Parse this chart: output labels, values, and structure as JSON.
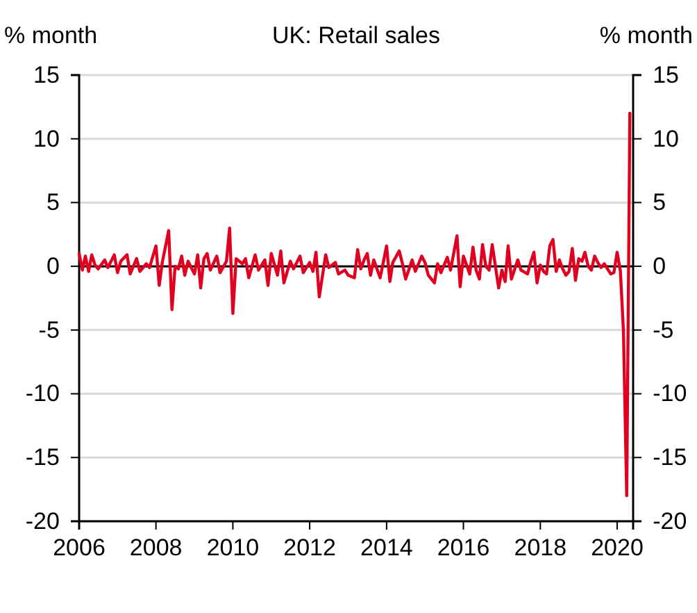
{
  "chart_data": {
    "type": "line",
    "title": "UK: Retail sales",
    "ylabel": "% month",
    "y2label": "% month",
    "x": [
      "2006-01",
      "2006-02",
      "2006-03",
      "2006-04",
      "2006-05",
      "2006-06",
      "2006-07",
      "2006-09",
      "2006-10",
      "2006-12",
      "2007-01",
      "2007-02",
      "2007-04",
      "2007-05",
      "2007-07",
      "2007-08",
      "2007-10",
      "2007-11",
      "2008-01",
      "2008-02",
      "2008-03",
      "2008-05",
      "2008-06",
      "2008-07",
      "2008-08",
      "2008-09",
      "2008-10",
      "2008-11",
      "2009-01",
      "2009-02",
      "2009-03",
      "2009-04",
      "2009-05",
      "2009-06",
      "2009-08",
      "2009-09",
      "2009-11",
      "2009-12",
      "2010-01",
      "2010-02",
      "2010-04",
      "2010-05",
      "2010-06",
      "2010-08",
      "2010-09",
      "2010-11",
      "2010-12",
      "2011-01",
      "2011-03",
      "2011-04",
      "2011-05",
      "2011-07",
      "2011-08",
      "2011-10",
      "2011-11",
      "2012-01",
      "2012-02",
      "2012-03",
      "2012-04",
      "2012-06",
      "2012-07",
      "2012-09",
      "2012-10",
      "2012-12",
      "2013-01",
      "2013-03",
      "2013-04",
      "2013-05",
      "2013-06",
      "2013-07",
      "2013-08",
      "2013-09",
      "2013-11",
      "2014-01",
      "2014-02",
      "2014-03",
      "2014-05",
      "2014-06",
      "2014-07",
      "2014-09",
      "2014-10",
      "2014-12",
      "2015-01",
      "2015-02",
      "2015-04",
      "2015-05",
      "2015-06",
      "2015-08",
      "2015-09",
      "2015-11",
      "2015-12",
      "2016-01",
      "2016-03",
      "2016-04",
      "2016-05",
      "2016-06",
      "2016-07",
      "2016-08",
      "2016-09",
      "2016-10",
      "2016-12",
      "2017-01",
      "2017-02",
      "2017-03",
      "2017-04",
      "2017-06",
      "2017-07",
      "2017-09",
      "2017-10",
      "2017-11",
      "2017-12",
      "2018-01",
      "2018-02",
      "2018-03",
      "2018-04",
      "2018-05",
      "2018-06",
      "2018-07",
      "2018-08",
      "2018-09",
      "2018-10",
      "2018-11",
      "2018-12",
      "2019-01",
      "2019-02",
      "2019-03",
      "2019-04",
      "2019-05",
      "2019-06",
      "2019-07",
      "2019-08",
      "2019-09",
      "2019-10",
      "2019-11",
      "2019-12",
      "2020-01",
      "2020-02",
      "2020-03",
      "2020-04",
      "2020-05"
    ],
    "series": [
      {
        "color": "#e00020",
        "values": [
          1.0,
          -0.3,
          0.8,
          -0.4,
          0.9,
          0.1,
          -0.2,
          0.5,
          -0.1,
          0.9,
          -0.5,
          0.4,
          0.9,
          -0.6,
          0.6,
          -0.4,
          0.2,
          -0.1,
          1.6,
          -1.5,
          0.3,
          2.8,
          -3.4,
          0.0,
          -0.2,
          0.8,
          -0.7,
          0.4,
          -0.6,
          0.9,
          -1.7,
          0.6,
          1.0,
          -0.3,
          0.8,
          -0.5,
          0.4,
          3.0,
          -3.7,
          0.6,
          0.2,
          0.6,
          -0.9,
          0.9,
          -0.3,
          0.5,
          -1.5,
          1.0,
          -0.7,
          1.2,
          -1.3,
          0.4,
          -0.2,
          0.8,
          -0.5,
          0.3,
          -0.4,
          1.1,
          -2.4,
          0.9,
          -0.1,
          0.3,
          -0.6,
          -0.3,
          -0.7,
          -0.9,
          1.3,
          -0.2,
          0.5,
          1.0,
          -0.7,
          0.5,
          -0.9,
          1.6,
          -1.2,
          0.3,
          1.2,
          0.2,
          -1.0,
          0.5,
          -0.4,
          0.8,
          0.3,
          -0.7,
          -1.3,
          0.2,
          -0.5,
          0.7,
          -0.3,
          2.4,
          -1.6,
          0.8,
          -0.6,
          1.5,
          -0.3,
          -1.0,
          1.7,
          0.0,
          -0.3,
          1.7,
          -1.7,
          -0.3,
          -1.2,
          1.6,
          -1.0,
          0.5,
          -0.3,
          -0.6,
          0.3,
          1.1,
          -1.3,
          0.1,
          -0.4,
          -0.6,
          1.6,
          2.1,
          -0.4,
          0.5,
          -0.2,
          -0.7,
          -0.4,
          1.4,
          -1.1,
          0.6,
          0.4,
          1.1,
          0.0,
          -0.3,
          0.8,
          0.3,
          -0.1,
          0.2,
          -0.2,
          -0.6,
          -0.5,
          1.1,
          -0.4,
          -5.1,
          -18.0,
          12.0
        ]
      }
    ],
    "xlim": [
      "2006-01",
      "2020-06"
    ],
    "xticks": [
      "2006",
      "2008",
      "2010",
      "2012",
      "2014",
      "2016",
      "2018",
      "2020"
    ],
    "ylim": [
      -20,
      15
    ],
    "yticks": [
      -20,
      -15,
      -10,
      -5,
      0,
      5,
      10,
      15
    ],
    "y2lim": [
      -20,
      15
    ],
    "y2ticks": [
      -20,
      -15,
      -10,
      -5,
      0,
      5,
      10,
      15
    ],
    "grid": "y",
    "marker": "none",
    "line_style": "solid"
  }
}
